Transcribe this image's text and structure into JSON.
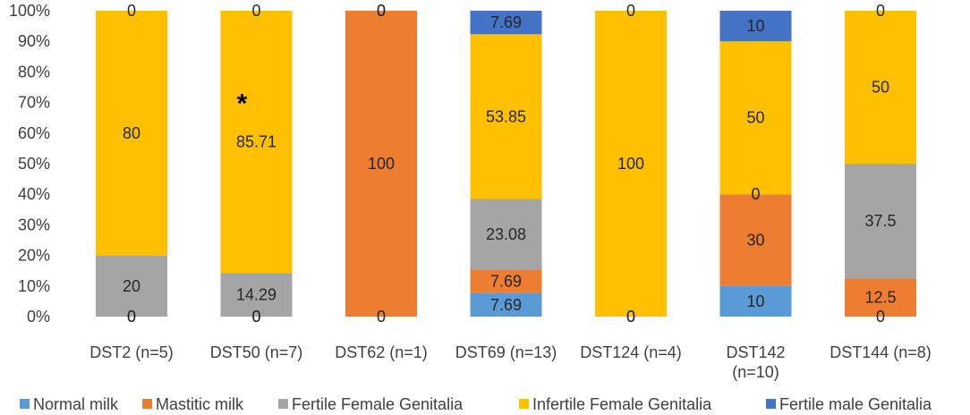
{
  "chart_data": {
    "type": "stacked-bar-100",
    "categories": [
      "DST2 (n=5)",
      "DST50 (n=7)",
      "DST62 (n=1)",
      "DST69 (n=13)",
      "DST124 (n=4)",
      "DST142 (n=10)",
      "DST144  (n=8)"
    ],
    "ylim": [
      0,
      100
    ],
    "y_ticks": [
      "0%",
      "10%",
      "20%",
      "30%",
      "40%",
      "50%",
      "60%",
      "70%",
      "80%",
      "90%",
      "100%"
    ],
    "grid": false,
    "legend_position": "bottom",
    "series": [
      {
        "name": "Normal milk",
        "color": "#5B9BD5",
        "values": [
          0,
          0,
          0,
          7.69,
          0,
          10,
          0
        ],
        "labels": [
          "0",
          "0",
          "",
          "7.69",
          "",
          "10",
          ""
        ]
      },
      {
        "name": "Mastitic milk",
        "color": "#ED7D31",
        "values": [
          0,
          0,
          100,
          7.69,
          0,
          30,
          12.5
        ],
        "labels": [
          "",
          "",
          "100",
          "7.69",
          "0",
          "30",
          "12.5"
        ]
      },
      {
        "name": "Fertile Female Genitalia",
        "color": "#A5A5A5",
        "values": [
          20,
          14.29,
          0,
          23.08,
          0,
          0,
          37.5
        ],
        "labels": [
          "20",
          "14.29",
          "0",
          "23.08",
          "",
          "0",
          "37.5"
        ]
      },
      {
        "name": "Infertile Female Genitalia",
        "color": "#FFC000",
        "values": [
          80,
          85.71,
          0,
          53.85,
          100,
          50,
          50
        ],
        "labels": [
          "80",
          "85.71",
          "",
          "53.85",
          "100",
          "50",
          "50"
        ]
      },
      {
        "name": "Fertile male Genitalia",
        "color": "#4472C4",
        "values": [
          0,
          0,
          0,
          7.69,
          0,
          10,
          0
        ],
        "labels": [
          "0",
          "0",
          "0",
          "7.69",
          "0",
          "10",
          "0"
        ]
      }
    ],
    "bottom_labels": [
      "0",
      "0",
      "0",
      "",
      "0",
      "",
      "0"
    ],
    "annotations": [
      {
        "text": "*",
        "category": "DST50 (n=7)",
        "y_value": 75
      }
    ]
  }
}
